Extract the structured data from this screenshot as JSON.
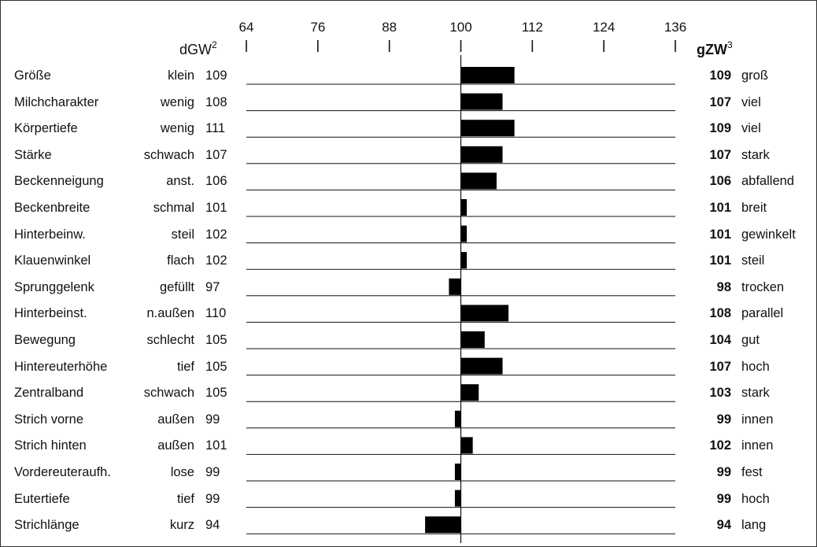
{
  "header": {
    "left_label": "dGW",
    "left_sup": "2",
    "right_label": "gZW",
    "right_sup": "3"
  },
  "chart_data": {
    "type": "bar",
    "orientation": "horizontal",
    "baseline": 100,
    "xlim": [
      64,
      136
    ],
    "ticks": [
      64,
      76,
      88,
      100,
      112,
      124,
      136
    ],
    "rows": [
      {
        "trait": "Größe",
        "low": "klein",
        "dgw": "109",
        "gzw": "109",
        "high": "groß",
        "value": 109
      },
      {
        "trait": "Milchcharakter",
        "low": "wenig",
        "dgw": "108",
        "gzw": "107",
        "high": "viel",
        "value": 107
      },
      {
        "trait": "Körpertiefe",
        "low": "wenig",
        "dgw": "111",
        "gzw": "109",
        "high": "viel",
        "value": 109
      },
      {
        "trait": "Stärke",
        "low": "schwach",
        "dgw": "107",
        "gzw": "107",
        "high": "stark",
        "value": 107
      },
      {
        "trait": "Beckenneigung",
        "low": "anst.",
        "dgw": "106",
        "gzw": "106",
        "high": "abfallend",
        "value": 106
      },
      {
        "trait": "Beckenbreite",
        "low": "schmal",
        "dgw": "101",
        "gzw": "101",
        "high": "breit",
        "value": 101
      },
      {
        "trait": "Hinterbeinw.",
        "low": "steil",
        "dgw": "102",
        "gzw": "101",
        "high": "gewinkelt",
        "value": 101
      },
      {
        "trait": "Klauenwinkel",
        "low": "flach",
        "dgw": "102",
        "gzw": "101",
        "high": "steil",
        "value": 101
      },
      {
        "trait": "Sprunggelenk",
        "low": "gefüllt",
        "dgw": "97",
        "gzw": "98",
        "high": "trocken",
        "value": 98
      },
      {
        "trait": "Hinterbeinst.",
        "low": "n.außen",
        "dgw": "110",
        "gzw": "108",
        "high": "parallel",
        "value": 108
      },
      {
        "trait": "Bewegung",
        "low": "schlecht",
        "dgw": "105",
        "gzw": "104",
        "high": "gut",
        "value": 104
      },
      {
        "trait": "Hintereuterhöhe",
        "low": "tief",
        "dgw": "105",
        "gzw": "107",
        "high": "hoch",
        "value": 107
      },
      {
        "trait": "Zentralband",
        "low": "schwach",
        "dgw": "105",
        "gzw": "103",
        "high": "stark",
        "value": 103
      },
      {
        "trait": "Strich vorne",
        "low": "außen",
        "dgw": "99",
        "gzw": "99",
        "high": "innen",
        "value": 99
      },
      {
        "trait": "Strich hinten",
        "low": "außen",
        "dgw": "101",
        "gzw": "102",
        "high": "innen",
        "value": 102
      },
      {
        "trait": "Vordereuteraufh.",
        "low": "lose",
        "dgw": "99",
        "gzw": "99",
        "high": "fest",
        "value": 99
      },
      {
        "trait": "Eutertiefe",
        "low": "tief",
        "dgw": "99",
        "gzw": "99",
        "high": "hoch",
        "value": 99
      },
      {
        "trait": "Strichlänge",
        "low": "kurz",
        "dgw": "94",
        "gzw": "94",
        "high": "lang",
        "value": 94
      }
    ]
  }
}
